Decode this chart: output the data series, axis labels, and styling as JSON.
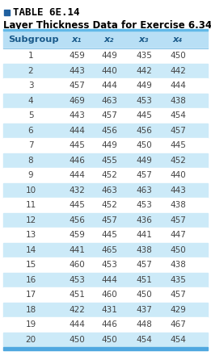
{
  "title_line1": "TABLE 6E.14",
  "title_line2": "Layer Thickness Data for Exercise 6.34",
  "columns": [
    "Subgroup",
    "x₁",
    "x₂",
    "x₃",
    "x₄"
  ],
  "rows": [
    [
      "1",
      "459",
      "449",
      "435",
      "450"
    ],
    [
      "2",
      "443",
      "440",
      "442",
      "442"
    ],
    [
      "3",
      "457",
      "444",
      "449",
      "444"
    ],
    [
      "4",
      "469",
      "463",
      "453",
      "438"
    ],
    [
      "5",
      "443",
      "457",
      "445",
      "454"
    ],
    [
      "6",
      "444",
      "456",
      "456",
      "457"
    ],
    [
      "7",
      "445",
      "449",
      "450",
      "445"
    ],
    [
      "8",
      "446",
      "455",
      "449",
      "452"
    ],
    [
      "9",
      "444",
      "452",
      "457",
      "440"
    ],
    [
      "10",
      "432",
      "463",
      "463",
      "443"
    ],
    [
      "11",
      "445",
      "452",
      "453",
      "438"
    ],
    [
      "12",
      "456",
      "457",
      "436",
      "457"
    ],
    [
      "13",
      "459",
      "445",
      "441",
      "447"
    ],
    [
      "14",
      "441",
      "465",
      "438",
      "450"
    ],
    [
      "15",
      "460",
      "453",
      "457",
      "438"
    ],
    [
      "16",
      "453",
      "444",
      "451",
      "435"
    ],
    [
      "17",
      "451",
      "460",
      "450",
      "457"
    ],
    [
      "18",
      "422",
      "431",
      "437",
      "429"
    ],
    [
      "19",
      "444",
      "446",
      "448",
      "467"
    ],
    [
      "20",
      "450",
      "450",
      "454",
      "454"
    ]
  ],
  "header_bg": "#b8dff5",
  "row_bg_white": "#ffffff",
  "row_bg_blue": "#cceaf8",
  "title_square_color": "#2060a0",
  "title_text_color": "#000000",
  "subtitle_text_color": "#000000",
  "header_text_color": "#1a5a8a",
  "data_text_color": "#444444",
  "top_border_color": "#60b8e8",
  "bottom_border_color": "#50a8e0",
  "header_divider_color": "#90c8e8"
}
